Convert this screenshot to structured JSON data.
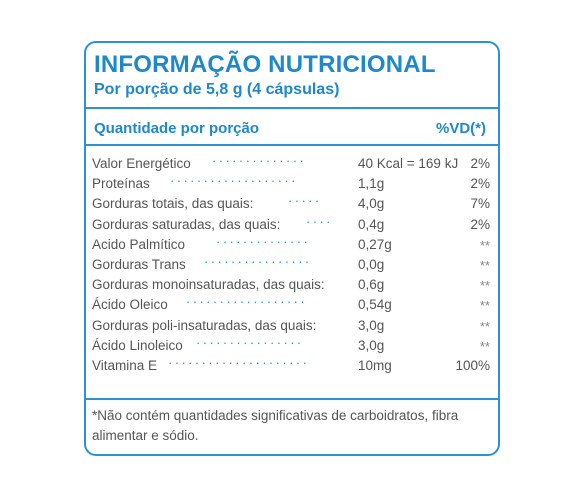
{
  "label": {
    "title": "INFORMAÇÃO NUTRICIONAL",
    "subtitle": "Por porção de 5,8 g (4 cápsulas)",
    "header_quantity": "Quantidade por porção",
    "header_vd": "%VD(*)",
    "rows": [
      {
        "name": "Valor Energético",
        "quantity": "40 Kcal = 169 kJ",
        "vd": "2%"
      },
      {
        "name": "Proteínas",
        "quantity": "1,1g",
        "vd": "2%"
      },
      {
        "name": "Gorduras totais, das quais:",
        "quantity": "4,0g",
        "vd": "7%"
      },
      {
        "name": "Gorduras saturadas, das quais:",
        "quantity": "0,4g",
        "vd": "2%"
      },
      {
        "name": "Acido Palmítico",
        "quantity": "0,27g",
        "vd": "**"
      },
      {
        "name": "Gorduras Trans",
        "quantity": "0,0g",
        "vd": "**"
      },
      {
        "name": "Gorduras monoinsaturadas, das quais:",
        "quantity": "0,6g",
        "vd": "**"
      },
      {
        "name": "Ácido Oleico",
        "quantity": "0,54g",
        "vd": "**"
      },
      {
        "name": "Gorduras poli-insaturadas, das quais:",
        "quantity": "3,0g",
        "vd": "**"
      },
      {
        "name": "Ácido Linoleico",
        "quantity": "3,0g",
        "vd": "**"
      },
      {
        "name": "Vitamina E",
        "quantity": "10mg",
        "vd": "100%"
      }
    ],
    "footnote": "*Não contém quantidades significativas de carboidratos, fibra alimentar e sódio."
  },
  "colors": {
    "accent": "#1e88cf",
    "border": "#2b93d1",
    "text": "#555555"
  }
}
